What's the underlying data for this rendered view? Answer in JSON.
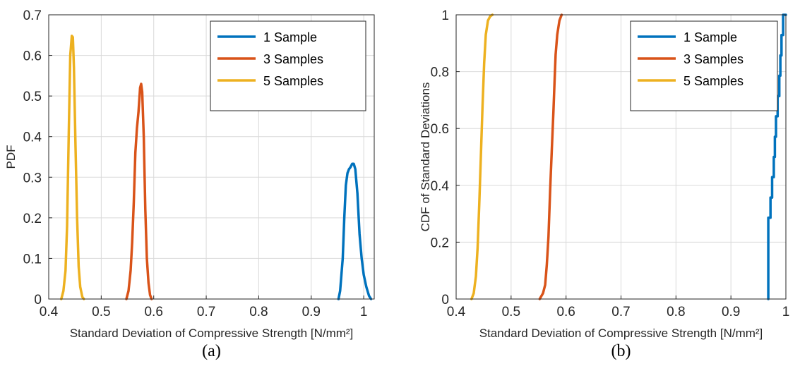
{
  "chart_data": [
    {
      "type": "line",
      "caption": "(a)",
      "xlabel": "Standard Deviation of Compressive Strength [N/mm²]",
      "ylabel": "PDF",
      "xlim": [
        0.4,
        1.02
      ],
      "ylim": [
        0,
        0.7
      ],
      "xticks": [
        "0.4",
        "0.5",
        "0.6",
        "0.7",
        "0.8",
        "0.9",
        "1"
      ],
      "yticks": [
        "0",
        "0.1",
        "0.2",
        "0.3",
        "0.4",
        "0.5",
        "0.6",
        "0.7"
      ],
      "xtick_values": [
        0.4,
        0.5,
        0.6,
        0.7,
        0.8,
        0.9,
        1.0
      ],
      "ytick_values": [
        0,
        0.1,
        0.2,
        0.3,
        0.4,
        0.5,
        0.6,
        0.7
      ],
      "grid": true,
      "legend_position": "top-right",
      "series": [
        {
          "name": "1 Sample",
          "color": "#0072BD",
          "x": [
            0.952,
            0.955,
            0.96,
            0.963,
            0.966,
            0.969,
            0.972,
            0.975,
            0.978,
            0.981,
            0.984,
            0.988,
            0.992,
            0.996,
            1.0,
            1.005,
            1.01,
            1.014
          ],
          "y": [
            0.0,
            0.02,
            0.1,
            0.2,
            0.28,
            0.31,
            0.32,
            0.325,
            0.333,
            0.333,
            0.32,
            0.26,
            0.16,
            0.1,
            0.06,
            0.03,
            0.008,
            0.0
          ]
        },
        {
          "name": "3 Samples",
          "color": "#D95319",
          "x": [
            0.548,
            0.552,
            0.556,
            0.559,
            0.562,
            0.565,
            0.568,
            0.571,
            0.574,
            0.576,
            0.578,
            0.581,
            0.584,
            0.587,
            0.59,
            0.593,
            0.596
          ],
          "y": [
            0.0,
            0.02,
            0.07,
            0.14,
            0.24,
            0.36,
            0.42,
            0.46,
            0.52,
            0.53,
            0.51,
            0.4,
            0.22,
            0.1,
            0.04,
            0.01,
            0.0
          ]
        },
        {
          "name": "5 Samples",
          "color": "#EDB120",
          "x": [
            0.424,
            0.428,
            0.432,
            0.435,
            0.438,
            0.441,
            0.444,
            0.446,
            0.448,
            0.451,
            0.454,
            0.457,
            0.46,
            0.464,
            0.467
          ],
          "y": [
            0.0,
            0.02,
            0.07,
            0.18,
            0.4,
            0.6,
            0.648,
            0.645,
            0.57,
            0.38,
            0.2,
            0.08,
            0.03,
            0.005,
            0.0
          ]
        }
      ]
    },
    {
      "type": "line",
      "caption": "(b)",
      "xlabel": "Standard Deviation of Compressive Strength [N/mm²]",
      "ylabel": "CDF of Standard Deviations",
      "xlim": [
        0.4,
        1.0
      ],
      "ylim": [
        0,
        1
      ],
      "xticks": [
        "0.4",
        "0.5",
        "0.6",
        "0.7",
        "0.8",
        "0.9",
        "1"
      ],
      "yticks": [
        "0",
        "0.2",
        "0.4",
        "0.6",
        "0.8",
        "1"
      ],
      "xtick_values": [
        0.4,
        0.5,
        0.6,
        0.7,
        0.8,
        0.9,
        1.0
      ],
      "ytick_values": [
        0,
        0.2,
        0.4,
        0.6,
        0.8,
        1.0
      ],
      "grid": true,
      "legend_position": "top-right",
      "series": [
        {
          "name": "1 Sample",
          "color": "#0072BD",
          "x": [
            0.968,
            0.968,
            0.972,
            0.972,
            0.975,
            0.975,
            0.978,
            0.978,
            0.98,
            0.98,
            0.982,
            0.982,
            0.985,
            0.985,
            0.988,
            0.988,
            0.99,
            0.99,
            0.992,
            0.992,
            0.995,
            0.995,
            1.0
          ],
          "y": [
            0.0,
            0.286,
            0.286,
            0.357,
            0.357,
            0.429,
            0.429,
            0.5,
            0.5,
            0.571,
            0.571,
            0.643,
            0.643,
            0.714,
            0.714,
            0.786,
            0.786,
            0.857,
            0.857,
            0.929,
            0.929,
            1.0,
            1.0
          ]
        },
        {
          "name": "3 Samples",
          "color": "#D95319",
          "x": [
            0.552,
            0.558,
            0.562,
            0.565,
            0.568,
            0.571,
            0.574,
            0.577,
            0.579,
            0.581,
            0.584,
            0.588,
            0.592
          ],
          "y": [
            0.0,
            0.02,
            0.05,
            0.12,
            0.22,
            0.38,
            0.52,
            0.66,
            0.76,
            0.86,
            0.93,
            0.98,
            1.0
          ]
        },
        {
          "name": "5 Samples",
          "color": "#EDB120",
          "x": [
            0.428,
            0.432,
            0.436,
            0.439,
            0.442,
            0.445,
            0.448,
            0.451,
            0.454,
            0.458,
            0.462,
            0.466
          ],
          "y": [
            0.0,
            0.02,
            0.08,
            0.18,
            0.33,
            0.5,
            0.68,
            0.83,
            0.93,
            0.98,
            0.995,
            1.0
          ]
        }
      ]
    }
  ]
}
